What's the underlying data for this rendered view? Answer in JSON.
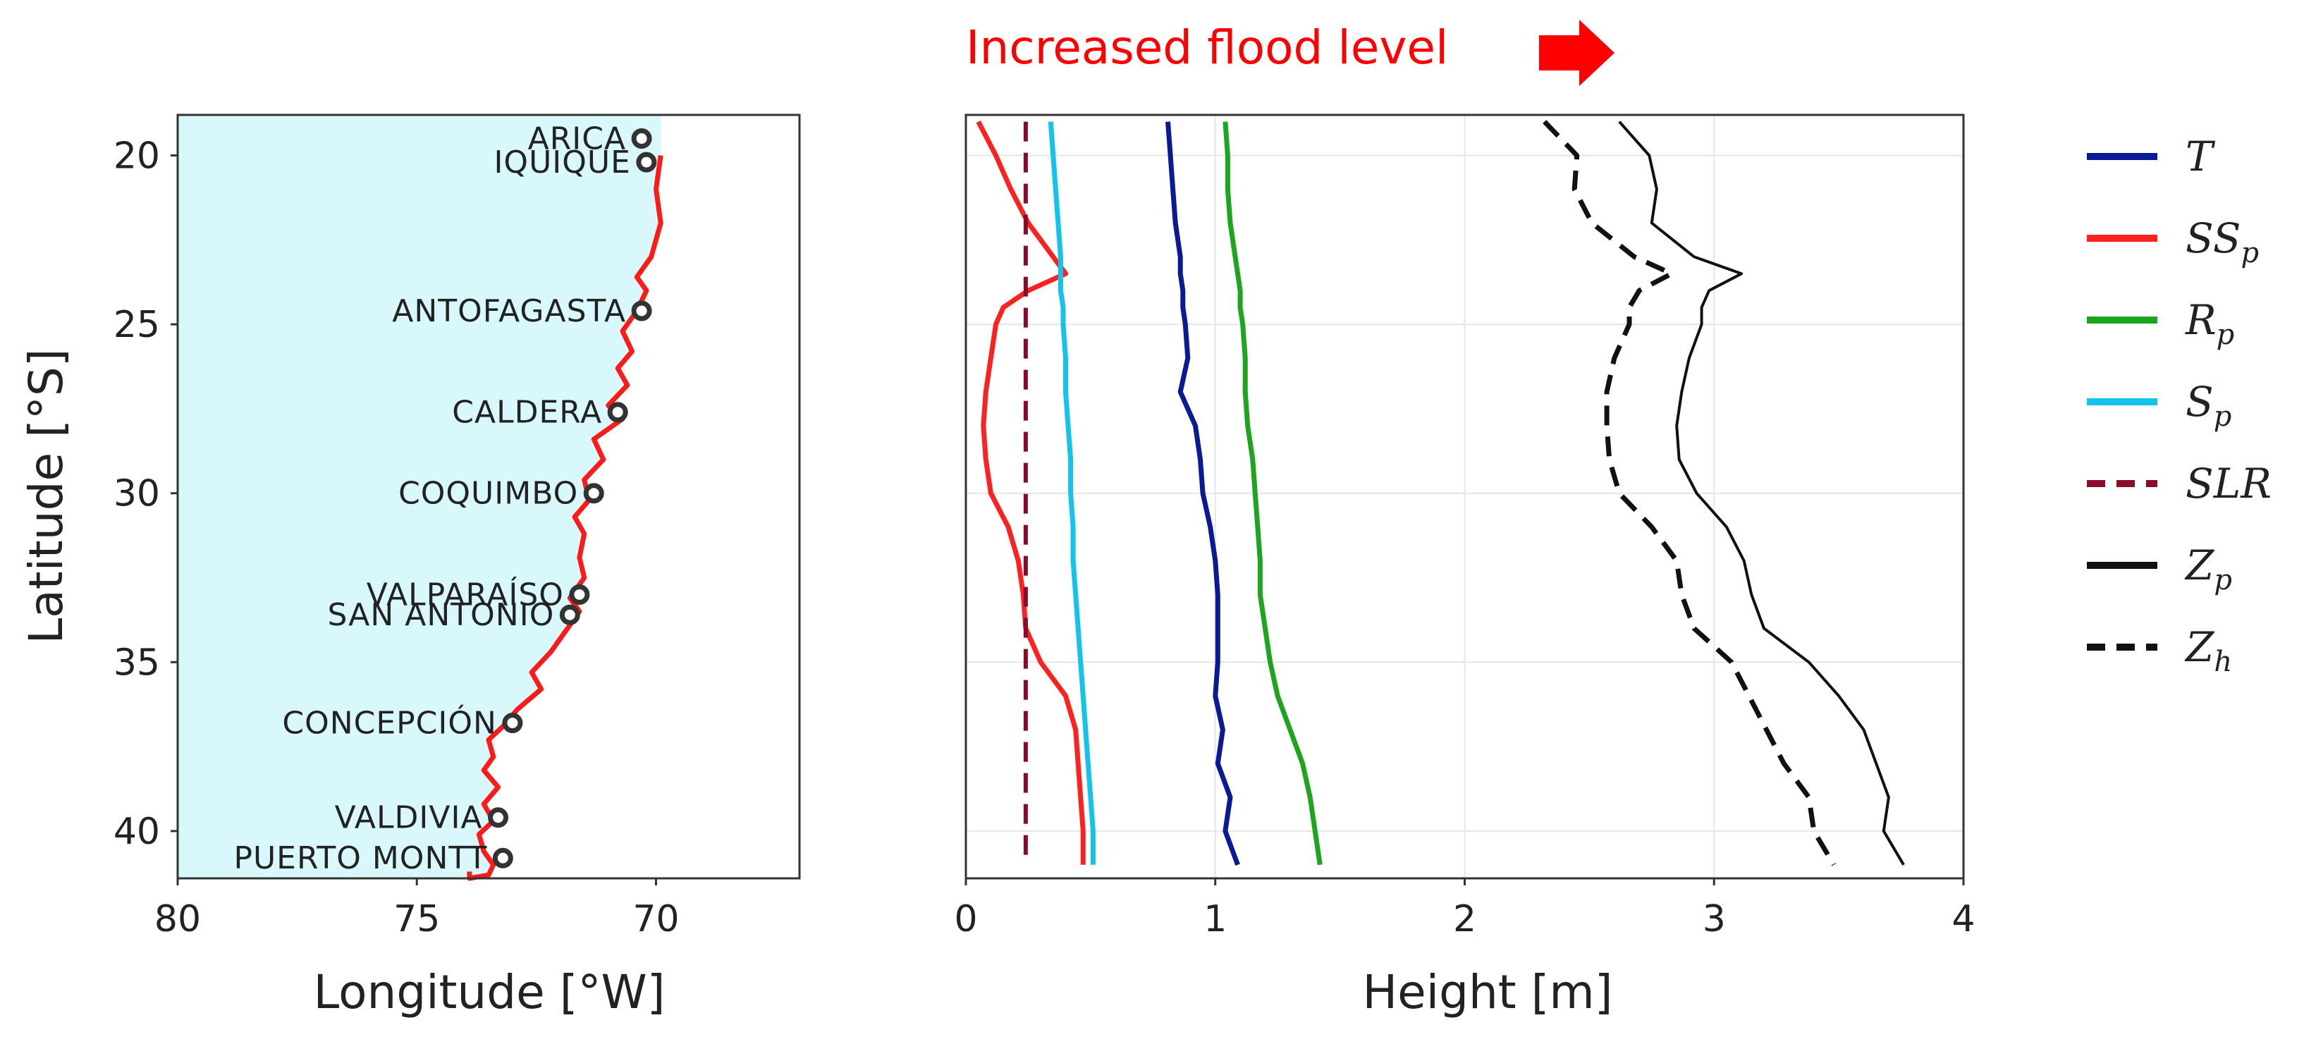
{
  "annotation": {
    "text": "Increased flood level",
    "color": "#ff0000"
  },
  "chart_data": [
    {
      "type": "map",
      "xlabel": "Longitude [°W]",
      "ylabel": "Latitude [°S]",
      "xlim": [
        80,
        67
      ],
      "ylim": [
        41.4,
        18.8
      ],
      "xticks": [
        80,
        75,
        70
      ],
      "yticks": [
        20,
        25,
        30,
        35,
        40
      ],
      "land_color": "#d9f8fb",
      "coast_color": "#ff1a1a",
      "coastline": [
        [
          69.9,
          20.0
        ],
        [
          70.0,
          21.0
        ],
        [
          69.9,
          22.0
        ],
        [
          70.1,
          23.0
        ],
        [
          70.4,
          23.6
        ],
        [
          70.2,
          24.0
        ],
        [
          70.4,
          24.6
        ],
        [
          70.7,
          25.2
        ],
        [
          70.5,
          25.8
        ],
        [
          70.8,
          26.3
        ],
        [
          70.6,
          26.8
        ],
        [
          71.0,
          27.4
        ],
        [
          70.7,
          27.8
        ],
        [
          71.3,
          28.4
        ],
        [
          71.1,
          29.0
        ],
        [
          71.5,
          29.6
        ],
        [
          71.4,
          30.2
        ],
        [
          71.7,
          30.7
        ],
        [
          71.5,
          31.2
        ],
        [
          71.6,
          31.9
        ],
        [
          71.5,
          32.5
        ],
        [
          71.8,
          33.1
        ],
        [
          71.6,
          33.5
        ],
        [
          71.9,
          34.1
        ],
        [
          72.2,
          34.7
        ],
        [
          72.6,
          35.3
        ],
        [
          72.4,
          35.8
        ],
        [
          72.9,
          36.4
        ],
        [
          73.2,
          36.9
        ],
        [
          73.5,
          37.3
        ],
        [
          73.4,
          37.8
        ],
        [
          73.6,
          38.2
        ],
        [
          73.3,
          38.7
        ],
        [
          73.6,
          39.2
        ],
        [
          73.4,
          39.7
        ],
        [
          73.7,
          40.1
        ],
        [
          73.6,
          40.6
        ],
        [
          73.4,
          41.0
        ],
        [
          73.5,
          41.3
        ],
        [
          73.9,
          41.4
        ],
        [
          73.9,
          41.2
        ]
      ],
      "cities": [
        {
          "name": "ARICA",
          "lon": 70.3,
          "lat": 19.5
        },
        {
          "name": "IQUIQUE",
          "lon": 70.2,
          "lat": 20.2
        },
        {
          "name": "ANTOFAGASTA",
          "lon": 70.3,
          "lat": 24.6
        },
        {
          "name": "CALDERA",
          "lon": 70.8,
          "lat": 27.6
        },
        {
          "name": "COQUIMBO",
          "lon": 71.3,
          "lat": 30.0
        },
        {
          "name": "VALPARAÍSO",
          "lon": 71.6,
          "lat": 33.0
        },
        {
          "name": "SAN ANTONIO",
          "lon": 71.8,
          "lat": 33.6
        },
        {
          "name": "CONCEPCIÓN",
          "lon": 73.0,
          "lat": 36.8
        },
        {
          "name": "VALDIVIA",
          "lon": 73.3,
          "lat": 39.6
        },
        {
          "name": "PUERTO MONTT",
          "lon": 73.2,
          "lat": 40.8
        }
      ]
    },
    {
      "type": "line",
      "xlabel": "Height [m]",
      "ylabel": "",
      "xlim": [
        0,
        4
      ],
      "ylim": [
        41.4,
        18.8
      ],
      "xticks": [
        0,
        1,
        2,
        3,
        4
      ],
      "grid": true,
      "latitudes": [
        19.0,
        20.0,
        21.0,
        22.0,
        23.0,
        23.5,
        24.0,
        24.5,
        25.0,
        26.0,
        27.0,
        28.0,
        29.0,
        30.0,
        31.0,
        32.0,
        33.0,
        34.0,
        35.0,
        36.0,
        37.0,
        38.0,
        39.0,
        40.0,
        41.0
      ],
      "series": [
        {
          "name": "T",
          "color": "#0a1a96",
          "style": "solid",
          "width": 7,
          "values": [
            0.81,
            0.82,
            0.83,
            0.84,
            0.86,
            0.86,
            0.87,
            0.87,
            0.88,
            0.89,
            0.86,
            0.92,
            0.94,
            0.95,
            0.98,
            1.0,
            1.01,
            1.01,
            1.01,
            1.0,
            1.03,
            1.01,
            1.06,
            1.04,
            1.09
          ]
        },
        {
          "name": "SS",
          "sub": "p",
          "color": "#ff2020",
          "style": "solid",
          "width": 7,
          "values": [
            0.05,
            0.12,
            0.18,
            0.25,
            0.35,
            0.4,
            0.25,
            0.15,
            0.12,
            0.1,
            0.08,
            0.07,
            0.08,
            0.1,
            0.17,
            0.21,
            0.23,
            0.24,
            0.3,
            0.4,
            0.44,
            0.45,
            0.46,
            0.47,
            0.47
          ]
        },
        {
          "name": "R",
          "sub": "p",
          "color": "#1ea51e",
          "style": "solid",
          "width": 7,
          "values": [
            1.04,
            1.05,
            1.05,
            1.06,
            1.08,
            1.09,
            1.1,
            1.1,
            1.11,
            1.12,
            1.12,
            1.13,
            1.15,
            1.16,
            1.17,
            1.18,
            1.18,
            1.2,
            1.22,
            1.25,
            1.3,
            1.35,
            1.38,
            1.4,
            1.42
          ]
        },
        {
          "name": "S",
          "sub": "p",
          "color": "#12c3ea",
          "style": "solid",
          "width": 7,
          "values": [
            0.34,
            0.35,
            0.36,
            0.37,
            0.38,
            0.38,
            0.38,
            0.39,
            0.39,
            0.4,
            0.4,
            0.41,
            0.42,
            0.42,
            0.43,
            0.43,
            0.44,
            0.45,
            0.46,
            0.47,
            0.48,
            0.49,
            0.5,
            0.51,
            0.51
          ]
        },
        {
          "name": "SLR",
          "color": "#8a0a2a",
          "style": "dashed",
          "width": 6,
          "values": [
            0.24,
            0.24,
            0.24,
            0.24,
            0.24,
            0.24,
            0.24,
            0.24,
            0.24,
            0.24,
            0.24,
            0.24,
            0.24,
            0.24,
            0.24,
            0.24,
            0.24,
            0.24,
            0.24,
            0.24,
            0.24,
            0.24,
            0.24,
            0.24,
            0.24
          ]
        },
        {
          "name": "Z",
          "sub": "p",
          "color": "#111111",
          "style": "solid",
          "width": 4,
          "values": [
            2.62,
            2.74,
            2.77,
            2.75,
            2.92,
            3.11,
            2.98,
            2.95,
            2.95,
            2.9,
            2.87,
            2.85,
            2.86,
            2.93,
            3.05,
            3.12,
            3.15,
            3.2,
            3.38,
            3.5,
            3.6,
            3.65,
            3.7,
            3.68,
            3.76
          ]
        },
        {
          "name": "Z",
          "sub": "h",
          "color": "#111111",
          "style": "dashed",
          "width": 7,
          "values": [
            2.32,
            2.45,
            2.44,
            2.51,
            2.68,
            2.83,
            2.7,
            2.66,
            2.66,
            2.6,
            2.57,
            2.57,
            2.58,
            2.62,
            2.75,
            2.85,
            2.87,
            2.92,
            3.07,
            3.14,
            3.21,
            3.28,
            3.38,
            3.4,
            3.48
          ]
        }
      ]
    }
  ],
  "legend": [
    {
      "name": "T",
      "color": "#0a1a96",
      "style": "solid"
    },
    {
      "name": "SS",
      "sub": "p",
      "color": "#ff2020",
      "style": "solid"
    },
    {
      "name": "R",
      "sub": "p",
      "color": "#1ea51e",
      "style": "solid"
    },
    {
      "name": "S",
      "sub": "p",
      "color": "#12c3ea",
      "style": "solid"
    },
    {
      "name": "SLR",
      "color": "#8a0a2a",
      "style": "dashed"
    },
    {
      "name": "Z",
      "sub": "p",
      "color": "#111111",
      "style": "solid"
    },
    {
      "name": "Z",
      "sub": "h",
      "color": "#111111",
      "style": "dashed"
    }
  ]
}
